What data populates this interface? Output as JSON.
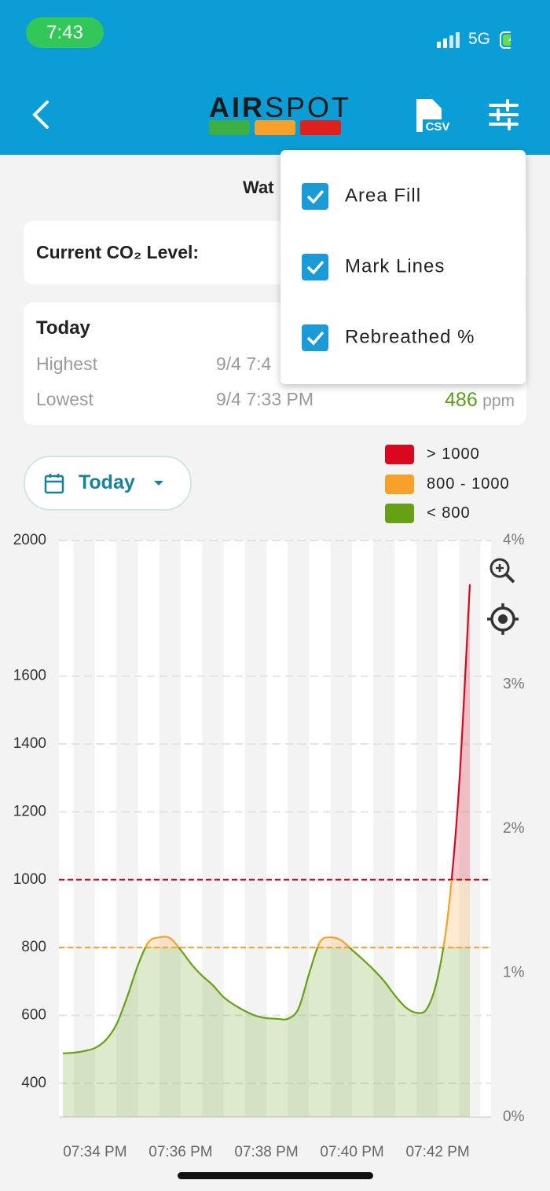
{
  "status_bar": {
    "time": "7:43",
    "network": "5G"
  },
  "header": {
    "logo_left": "AIR",
    "logo_right": "SPOT",
    "csv_label": "CSV"
  },
  "title": "Wat",
  "current_level": {
    "label": "Current CO₂ Level:"
  },
  "today_card": {
    "title": "Today",
    "highest": {
      "label": "Highest",
      "time": "9/4 7:4"
    },
    "lowest": {
      "label": "Lowest",
      "time": "9/4 7:33 PM",
      "value": 486,
      "unit": "ppm"
    }
  },
  "menu": {
    "items": [
      {
        "label": "Area Fill",
        "checked": true
      },
      {
        "label": "Mark Lines",
        "checked": true
      },
      {
        "label": "Rebreathed %",
        "checked": true
      }
    ]
  },
  "range_button": "Today",
  "chart_data": {
    "type": "line",
    "categories": [
      null,
      null,
      null,
      "07:34 PM",
      null,
      null,
      null,
      null,
      null,
      null,
      null,
      "07:36 PM",
      null,
      null,
      null,
      null,
      null,
      null,
      null,
      "07:38 PM",
      null,
      null,
      null,
      null,
      null,
      null,
      null,
      "07:40 PM",
      null,
      null,
      null,
      null,
      null,
      null,
      null,
      "07:42 PM",
      null,
      null,
      null
    ],
    "values": [
      488,
      490,
      495,
      504,
      527,
      573,
      654,
      747,
      816,
      830,
      828,
      793,
      751,
      717,
      689,
      654,
      631,
      613,
      599,
      592,
      590,
      590,
      620,
      724,
      816,
      830,
      821,
      793,
      765,
      735,
      701,
      659,
      624,
      608,
      620,
      712,
      909,
      1279,
      1871
    ],
    "ylim": [
      300,
      2000
    ],
    "yticks": [
      400,
      600,
      800,
      1000,
      1200,
      1400,
      1600,
      2000
    ],
    "y2lim": [
      0,
      4
    ],
    "y2ticks": [
      {
        "value": 0,
        "label": "0%"
      },
      {
        "value": 1,
        "label": "1%"
      },
      {
        "value": 2,
        "label": "2%"
      },
      {
        "value": 3,
        "label": "3%"
      },
      {
        "value": 4,
        "label": "4%"
      }
    ],
    "grid": true,
    "legend": [
      {
        "label": "> 1000",
        "color": "#d9071f"
      },
      {
        "label": "800 - 1000",
        "color": "#f7a12b"
      },
      {
        "label": "< 800",
        "color": "#66a115"
      }
    ],
    "mark_lines": [
      {
        "value": 1000,
        "color": "#d9071f"
      },
      {
        "value": 800,
        "color": "#f7a12b"
      }
    ]
  }
}
